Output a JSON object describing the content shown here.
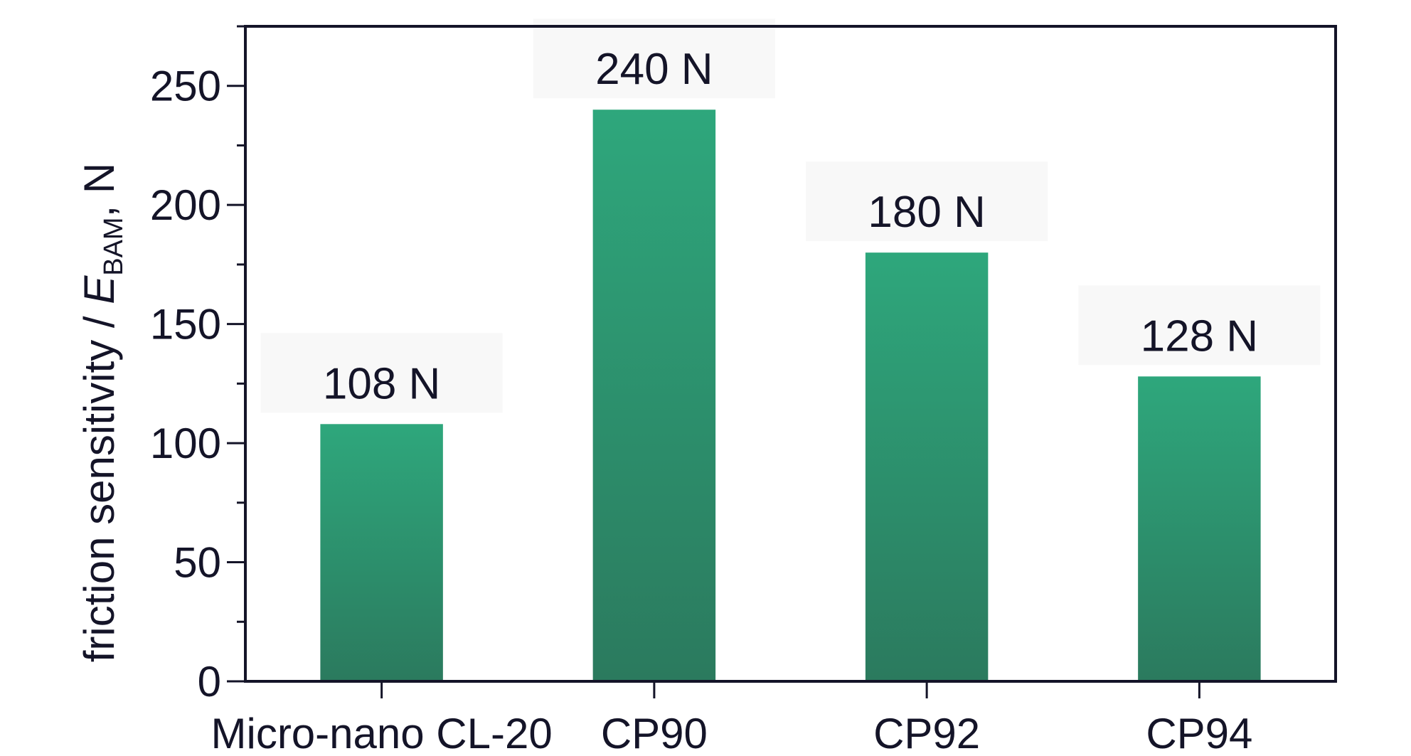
{
  "chart_data": {
    "type": "bar",
    "categories": [
      "Micro-nano CL-20",
      "CP90",
      "CP92",
      "CP94"
    ],
    "values": [
      108,
      240,
      180,
      128
    ],
    "data_labels": [
      "108 N",
      "240 N",
      "180 N",
      "128 N"
    ],
    "title": "",
    "xlabel": "",
    "ylabel": {
      "prefix": "friction sensitivity / ",
      "symbol": "E",
      "subscript": "BAM",
      "suffix": ", N"
    },
    "ylim": [
      0,
      275
    ],
    "yticks": [
      0,
      50,
      100,
      150,
      200,
      250
    ],
    "ytick_labels": [
      "0",
      "50",
      "100",
      "150",
      "200",
      "250"
    ],
    "grid": false,
    "legend": "none",
    "colors": {
      "bar_top": "#2ea77c",
      "bar_bottom": "#2b7a5e",
      "axis": "#141428",
      "label_bg": "#f6f6f6"
    }
  }
}
